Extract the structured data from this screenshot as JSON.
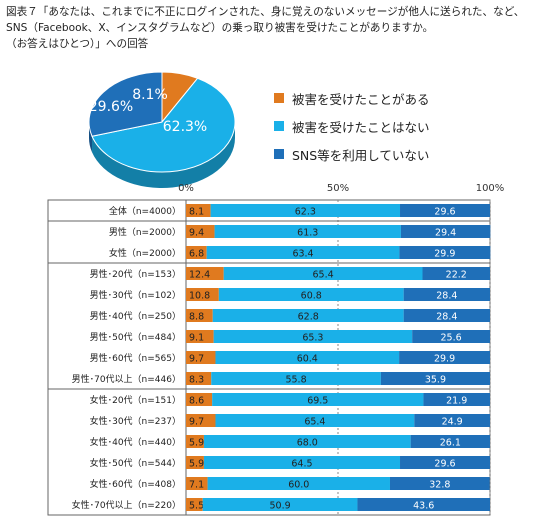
{
  "title": {
    "lines": [
      "図表７「あなたは、これまでに不正にログインされた、身に覚えのないメッセージが他人に送られた、など、",
      "SNS（Facebook、X、インスタグラムなど）の乗っ取り被害を受けたことがありますか。",
      "（お答えはひとつ）」への回答"
    ]
  },
  "colors": {
    "victim": "#E07A1F",
    "not_victim": "#1AB0E8",
    "no_sns": "#1F6FB8"
  },
  "chart_data": [
    {
      "type": "pie",
      "categories": [
        "被害を受けたことがある",
        "被害を受けたことはない",
        "SNS等を利用していない"
      ],
      "values": [
        8.1,
        62.3,
        29.6
      ],
      "labels": [
        "8.1%",
        "62.3%",
        "29.6%"
      ],
      "legend": "right"
    },
    {
      "type": "bar",
      "orientation": "horizontal",
      "stacked": true,
      "percent": true,
      "axis_ticks": [
        "0%",
        "50%",
        "100%"
      ],
      "xlim": [
        0,
        100
      ],
      "categories": [
        "全体（n=4000）",
        "男性（n=2000）",
        "女性（n=2000）",
        "男性･20代（n=153）",
        "男性･30代（n=102）",
        "男性･40代（n=250）",
        "男性･50代（n=484）",
        "男性･60代（n=565）",
        "男性･70代以上（n=446）",
        "女性･20代（n=151）",
        "女性･30代（n=237）",
        "女性･40代（n=440）",
        "女性･50代（n=544）",
        "女性･60代（n=408）",
        "女性･70代以上（n=220）"
      ],
      "series": [
        {
          "values": [
            8.1,
            9.4,
            6.8,
            12.4,
            10.8,
            8.8,
            9.1,
            9.7,
            8.3,
            8.6,
            9.7,
            5.9,
            5.9,
            7.1,
            5.5
          ],
          "labels": [
            "8.1",
            "9.4",
            "6.8",
            "12.4",
            "10.8",
            "8.8",
            "9.1",
            "9.7",
            "8.3",
            "8.6",
            "9.7",
            "5.9",
            "5.9",
            "7.1",
            "5.5"
          ]
        },
        {
          "values": [
            62.3,
            61.3,
            63.4,
            65.4,
            60.8,
            62.8,
            65.3,
            60.4,
            55.8,
            69.5,
            65.4,
            68.0,
            64.5,
            60.0,
            50.9
          ],
          "labels": [
            "62.3",
            "61.3",
            "63.4",
            "65.4",
            "60.8",
            "62.8",
            "65.3",
            "60.4",
            "55.8",
            "69.5",
            "65.4",
            "68.0",
            "64.5",
            "60.0",
            "50.9"
          ]
        },
        {
          "values": [
            29.6,
            29.4,
            29.9,
            22.2,
            28.4,
            28.4,
            25.6,
            29.9,
            35.9,
            21.9,
            24.9,
            26.1,
            29.6,
            32.8,
            43.6
          ],
          "labels": [
            "29.6",
            "29.4",
            "29.9",
            "22.2",
            "28.4",
            "28.4",
            "25.6",
            "29.9",
            "35.9",
            "21.9",
            "24.9",
            "26.1",
            "29.6",
            "32.8",
            "43.6"
          ]
        }
      ],
      "groups": [
        [
          0
        ],
        [
          1,
          2
        ],
        [
          3,
          4,
          5,
          6,
          7,
          8
        ],
        [
          9,
          10,
          11,
          12,
          13,
          14
        ]
      ]
    }
  ]
}
